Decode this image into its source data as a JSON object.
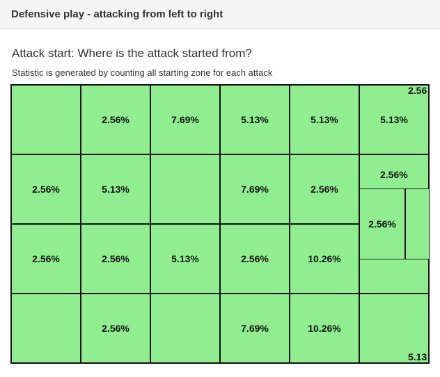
{
  "header": {
    "title": "Defensive play - attacking from left to right"
  },
  "section": {
    "title": "Attack start: Where is the attack started from?",
    "subtitle": "Statistic is generated by counting all starting zone for each attack"
  },
  "grid": {
    "rows": [
      [
        "",
        "2.56%",
        "7.69%",
        "5.13%",
        "5.13%",
        "5.13%"
      ],
      [
        "2.56%",
        "5.13%",
        "",
        "7.69%",
        "2.56%",
        ""
      ],
      [
        "2.56%",
        "2.56%",
        "5.13%",
        "2.56%",
        "10.26%",
        ""
      ],
      [
        "",
        "2.56%",
        "",
        "7.69%",
        "10.26%",
        ""
      ]
    ],
    "right_zone": {
      "top_corner": "2.56",
      "upper_box": "2.56%",
      "mid_box": "2.56%",
      "bottom_corner": "5.13"
    }
  }
}
